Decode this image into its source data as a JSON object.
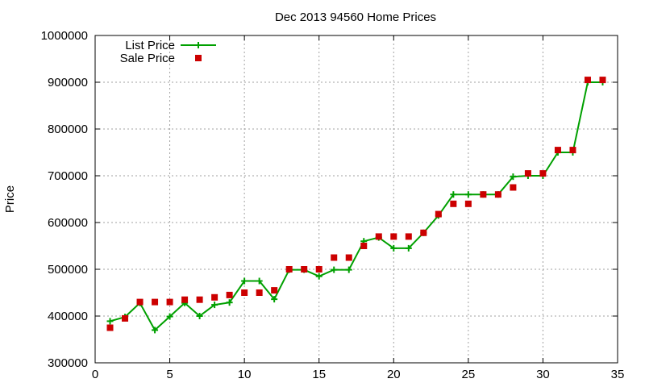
{
  "chart_data": {
    "type": "line",
    "title": "Dec 2013 94560 Home Prices",
    "xlabel": "",
    "ylabel": "Price",
    "xlim": [
      0,
      35
    ],
    "ylim": [
      300000,
      1000000
    ],
    "xticks": [
      "0",
      "5",
      "10",
      "15",
      "20",
      "25",
      "30",
      "35"
    ],
    "yticks": [
      "300000",
      "400000",
      "500000",
      "600000",
      "700000",
      "800000",
      "900000",
      "1000000"
    ],
    "grid": true,
    "legend_position": "top-left",
    "series": [
      {
        "name": "List Price",
        "style": "line-plus",
        "color": "#00a000",
        "x": [
          1,
          2,
          3,
          4,
          5,
          6,
          7,
          8,
          9,
          10,
          11,
          12,
          13,
          14,
          15,
          16,
          17,
          18,
          19,
          20,
          21,
          22,
          23,
          24,
          25,
          26,
          27,
          28,
          29,
          30,
          31,
          32,
          33,
          34
        ],
        "y": [
          389000,
          398000,
          428000,
          370000,
          399000,
          428000,
          400000,
          424000,
          429000,
          475000,
          475000,
          436000,
          499000,
          499000,
          485000,
          499000,
          499000,
          560000,
          568000,
          545000,
          545000,
          578000,
          615000,
          660000,
          660000,
          660000,
          660000,
          698000,
          700000,
          700000,
          750000,
          750000,
          900000,
          900000
        ]
      },
      {
        "name": "Sale Price",
        "style": "square",
        "color": "#cc0000",
        "x": [
          1,
          2,
          3,
          4,
          5,
          6,
          7,
          8,
          9,
          10,
          11,
          12,
          13,
          14,
          15,
          16,
          17,
          18,
          19,
          20,
          21,
          22,
          23,
          24,
          25,
          26,
          27,
          28,
          29,
          30,
          31,
          32,
          33,
          34
        ],
        "y": [
          375000,
          395000,
          430000,
          430000,
          430000,
          435000,
          435000,
          440000,
          445000,
          450000,
          450000,
          455000,
          500000,
          500000,
          500000,
          525000,
          525000,
          550000,
          570000,
          570000,
          570000,
          578000,
          618000,
          640000,
          640000,
          660000,
          660000,
          675000,
          705000,
          705000,
          755000,
          755000,
          905000,
          905000
        ]
      }
    ]
  }
}
